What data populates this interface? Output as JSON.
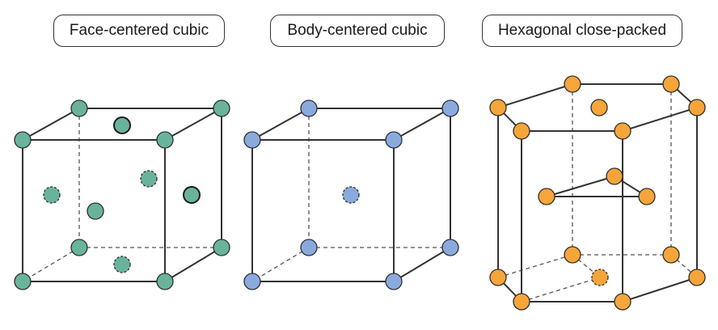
{
  "labels": {
    "fcc": "Face-centered cubic",
    "bcc": "Body-centered cubic",
    "hcp": "Hexagonal close-packed"
  },
  "colors": {
    "fcc_atom": "#69b39c",
    "bcc_atom": "#8aaade",
    "hcp_atom": "#f5a53a",
    "edge": "#333333"
  },
  "structures": {
    "fcc": {
      "corner_atoms": 8,
      "face_atoms": 6
    },
    "bcc": {
      "corner_atoms": 8,
      "center_atoms": 1
    },
    "hcp": {
      "vertex_atoms": 12,
      "face_center_atoms": 2,
      "interior_atoms": 3
    }
  }
}
